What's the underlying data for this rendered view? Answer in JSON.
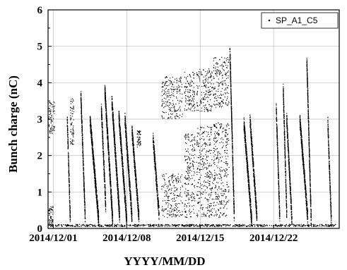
{
  "chart_data": {
    "type": "scatter",
    "xlabel": "YYYY/MM/DD",
    "ylabel": "Bunch charge (nC)",
    "xlim": [
      "2014-11-30T12:00",
      "2014-12-28T06:00"
    ],
    "ylim": [
      0,
      6
    ],
    "x_ticks": [
      "2014/12/01",
      "2014/12/08",
      "2014/12/15",
      "2014/12/22"
    ],
    "y_ticks": [
      0,
      1,
      2,
      3,
      4,
      5,
      6
    ],
    "grid": true,
    "legend": {
      "position": "top-right",
      "entries": [
        "SP_A1_C5"
      ]
    },
    "series": [
      {
        "name": "SP_A1_C5",
        "marker": "point",
        "color": "#000000",
        "bursts": [
          {
            "start": "2014-11-30T12:00",
            "end": "2014-12-01T03:00",
            "y_top": 3.5,
            "y_bottom": 2.6,
            "shape": "band"
          },
          {
            "start": "2014-11-30T13:00",
            "end": "2014-12-01T00:00",
            "y_top": 0.6,
            "y_bottom": 0.05,
            "shape": "band"
          },
          {
            "start": "2014-12-02T08:00",
            "end": "2014-12-02T15:00",
            "y_top": 3.0,
            "y_bottom": 0.2,
            "shape": "decay"
          },
          {
            "start": "2014-12-02T15:00",
            "end": "2014-12-02T23:00",
            "y_top": 3.6,
            "y_bottom": 2.3,
            "shape": "band"
          },
          {
            "start": "2014-12-03T15:00",
            "end": "2014-12-04T01:00",
            "y_top": 3.7,
            "y_bottom": 0.3,
            "shape": "decay"
          },
          {
            "start": "2014-12-04T12:00",
            "end": "2014-12-05T08:00",
            "y_top": 3.0,
            "y_bottom": 0.2,
            "shape": "decay"
          },
          {
            "start": "2014-12-05T14:00",
            "end": "2014-12-06T00:00",
            "y_top": 3.3,
            "y_bottom": 0.6,
            "shape": "decay"
          },
          {
            "start": "2014-12-05T22:00",
            "end": "2014-12-06T16:00",
            "y_top": 3.8,
            "y_bottom": 0.2,
            "shape": "decay"
          },
          {
            "start": "2014-12-06T14:00",
            "end": "2014-12-07T08:00",
            "y_top": 3.5,
            "y_bottom": 0.3,
            "shape": "decay"
          },
          {
            "start": "2014-12-07T06:00",
            "end": "2014-12-08T00:00",
            "y_top": 3.1,
            "y_bottom": 0.2,
            "shape": "decay"
          },
          {
            "start": "2014-12-07T20:00",
            "end": "2014-12-08T12:00",
            "y_top": 3.0,
            "y_bottom": 0.3,
            "shape": "decay"
          },
          {
            "start": "2014-12-08T12:00",
            "end": "2014-12-09T04:00",
            "y_top": 2.7,
            "y_bottom": 0.3,
            "shape": "decay"
          },
          {
            "start": "2014-12-09T00:00",
            "end": "2014-12-09T08:00",
            "y_top": 2.7,
            "y_bottom": 2.2,
            "shape": "band"
          },
          {
            "start": "2014-12-10T12:00",
            "end": "2014-12-11T02:00",
            "y_top": 2.5,
            "y_bottom": 0.4,
            "shape": "decay"
          },
          {
            "start": "2014-12-11T08:00",
            "end": "2014-12-13T08:00",
            "y_top": 4.2,
            "y_bottom": 3.0,
            "shape": "band"
          },
          {
            "start": "2014-12-11T08:00",
            "end": "2014-12-13T08:00",
            "y_top": 1.5,
            "y_bottom": 0.3,
            "shape": "band"
          },
          {
            "start": "2014-12-13T12:00",
            "end": "2014-12-14T12:00",
            "y_top": 4.3,
            "y_bottom": 3.2,
            "shape": "band"
          },
          {
            "start": "2014-12-13T12:00",
            "end": "2014-12-14T12:00",
            "y_top": 2.6,
            "y_bottom": 0.3,
            "shape": "band"
          },
          {
            "start": "2014-12-14T16:00",
            "end": "2014-12-16T04:00",
            "y_top": 4.4,
            "y_bottom": 3.2,
            "shape": "band"
          },
          {
            "start": "2014-12-14T16:00",
            "end": "2014-12-16T04:00",
            "y_top": 2.8,
            "y_bottom": 0.3,
            "shape": "band"
          },
          {
            "start": "2014-12-16T06:00",
            "end": "2014-12-17T18:00",
            "y_top": 4.7,
            "y_bottom": 3.3,
            "shape": "band"
          },
          {
            "start": "2014-12-16T06:00",
            "end": "2014-12-17T18:00",
            "y_top": 2.9,
            "y_bottom": 0.3,
            "shape": "band"
          },
          {
            "start": "2014-12-17T20:00",
            "end": "2014-12-18T06:00",
            "y_top": 4.9,
            "y_bottom": 0.3,
            "shape": "decay"
          },
          {
            "start": "2014-12-19T04:00",
            "end": "2014-12-19T22:00",
            "y_top": 2.9,
            "y_bottom": 0.2,
            "shape": "decay"
          },
          {
            "start": "2014-12-19T18:00",
            "end": "2014-12-20T10:00",
            "y_top": 3.0,
            "y_bottom": 0.3,
            "shape": "decay"
          },
          {
            "start": "2014-12-22T06:00",
            "end": "2014-12-22T14:00",
            "y_top": 3.3,
            "y_bottom": 0.3,
            "shape": "decay"
          },
          {
            "start": "2014-12-22T22:00",
            "end": "2014-12-23T06:00",
            "y_top": 3.8,
            "y_bottom": 0.4,
            "shape": "decay"
          },
          {
            "start": "2014-12-23T06:00",
            "end": "2014-12-23T18:00",
            "y_top": 3.0,
            "y_bottom": 0.2,
            "shape": "decay"
          },
          {
            "start": "2014-12-24T12:00",
            "end": "2014-12-25T06:00",
            "y_top": 3.0,
            "y_bottom": 0.3,
            "shape": "decay"
          },
          {
            "start": "2014-12-25T04:00",
            "end": "2014-12-25T14:00",
            "y_top": 4.6,
            "y_bottom": 0.2,
            "shape": "decay"
          },
          {
            "start": "2014-12-27T04:00",
            "end": "2014-12-27T12:00",
            "y_top": 2.9,
            "y_bottom": 0.2,
            "shape": "decay"
          }
        ],
        "baseline": {
          "start": "2014-11-30T12:00",
          "end": "2014-12-27T22:00",
          "y": 0.08
        }
      }
    ]
  }
}
